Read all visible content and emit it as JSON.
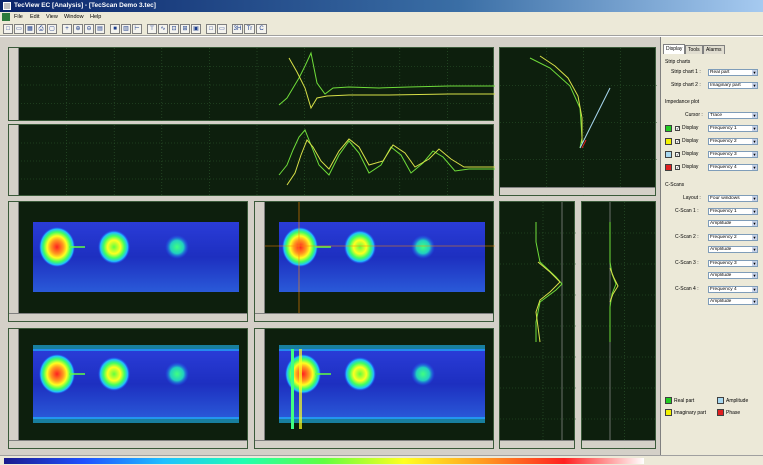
{
  "window": {
    "title": "TecView EC [Analysis] - [TecScan Demo 3.tec]"
  },
  "menu": [
    "File",
    "Edit",
    "View",
    "Window",
    "Help"
  ],
  "toolbar_icons": [
    "new-icon",
    "open-icon",
    "save-icon",
    "print-icon",
    "preview-icon",
    "cursor-icon",
    "zoom-in-icon",
    "zoom-out-icon",
    "grid-icon",
    "color-icon",
    "palette-icon",
    "ruler-icon",
    "filter-icon",
    "waveform-icon",
    "measure-icon",
    "table-icon",
    "scan-icon",
    "text-icon",
    "calibrate-icon"
  ],
  "toolbar_text_buttons": {
    "b1": "3H",
    "b2": "Tr",
    "b3": "C"
  },
  "side": {
    "tabs": [
      "Display",
      "Tools",
      "Alarms"
    ],
    "strip_charts_label": "Strip charts",
    "strip_chart_1_label": "Strip chart 1 :",
    "strip_chart_1_value": "Real part",
    "strip_chart_2_label": "Strip chart 2 :",
    "strip_chart_2_value": "Imaginary part",
    "impedance_label": "Impedance plot",
    "cursor_label": "Cursor :",
    "cursor_value": "Trace",
    "display_label": "Display",
    "freq_rows": [
      {
        "color": "#22cc22",
        "checked": true,
        "value": "Frequency 1"
      },
      {
        "color": "#f2f200",
        "checked": true,
        "value": "Frequency 2"
      },
      {
        "color": "#a8d8f0",
        "checked": true,
        "value": "Frequency 3"
      },
      {
        "color": "#e02020",
        "checked": true,
        "value": "Frequency 4"
      }
    ],
    "cscans_label": "C-Scans",
    "layout_label": "Layout :",
    "layout_value": "Four windows",
    "cscans": [
      {
        "label": "C-Scan 1 :",
        "freq": "Frequency 1",
        "mode": "Amplitude"
      },
      {
        "label": "C-Scan 2 :",
        "freq": "Frequency 2",
        "mode": "Amplitude"
      },
      {
        "label": "C-Scan 3 :",
        "freq": "Frequency 3",
        "mode": "Amplitude"
      },
      {
        "label": "C-Scan 4 :",
        "freq": "Frequency 4",
        "mode": "Amplitude"
      }
    ],
    "legend": [
      {
        "color": "#22cc22",
        "label": "Real part"
      },
      {
        "color": "#a8d8f0",
        "label": "Amplitude"
      },
      {
        "color": "#f2f200",
        "label": "Imaginary part"
      },
      {
        "color": "#e02020",
        "label": "Phase"
      }
    ]
  },
  "colors": {
    "panel_bg": "#0d1f0d",
    "grid": "#2f5a2f",
    "trace_green": "#6fdc3a",
    "trace_yellow": "#d8e048",
    "cursor": "#ff8800"
  }
}
